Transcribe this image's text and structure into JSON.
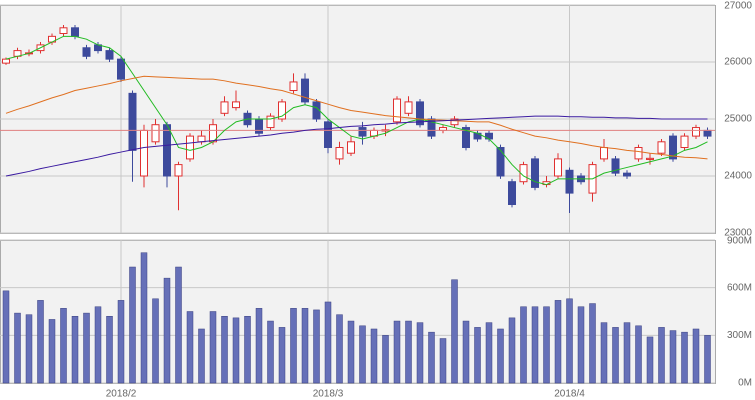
{
  "chart_data": [
    {
      "type": "candlestick",
      "categories": [
        null,
        null,
        null,
        null,
        null,
        null,
        null,
        null,
        null,
        null,
        "2018/2",
        null,
        null,
        null,
        null,
        null,
        null,
        null,
        null,
        null,
        null,
        null,
        null,
        null,
        null,
        null,
        null,
        null,
        "2018/3",
        null,
        null,
        null,
        null,
        null,
        null,
        null,
        null,
        null,
        null,
        null,
        null,
        null,
        null,
        null,
        null,
        null,
        null,
        null,
        null,
        "2018/4",
        null,
        null,
        null,
        null,
        null,
        null,
        null,
        null,
        null,
        null,
        null,
        null
      ],
      "open": [
        25980,
        26100,
        26150,
        26200,
        26350,
        26500,
        26600,
        26250,
        26300,
        26200,
        26050,
        25450,
        24000,
        24600,
        24900,
        24000,
        24300,
        24600,
        24600,
        25100,
        25200,
        25100,
        25000,
        24850,
        25000,
        25500,
        25700,
        25300,
        24950,
        24300,
        24400,
        24850,
        24700,
        24790,
        24950,
        25100,
        25300,
        25000,
        24800,
        24900,
        24850,
        24750,
        24750,
        24500,
        23900,
        23900,
        24300,
        23850,
        24000,
        24100,
        24000,
        23700,
        24300,
        24300,
        24050,
        24300,
        24290,
        24400,
        24700,
        24500,
        24700,
        24800
      ],
      "high": [
        26080,
        26250,
        26220,
        26350,
        26500,
        26650,
        26650,
        26300,
        26350,
        26250,
        26100,
        25500,
        24900,
        25000,
        24950,
        24250,
        24750,
        24800,
        25000,
        25400,
        25500,
        25150,
        25050,
        25100,
        25350,
        25800,
        25800,
        25350,
        25000,
        24600,
        24700,
        24950,
        24850,
        24900,
        25400,
        25400,
        25350,
        25050,
        24900,
        25050,
        24900,
        24800,
        24800,
        24550,
        23950,
        24250,
        24350,
        24000,
        24400,
        24150,
        24050,
        24250,
        24650,
        24350,
        24100,
        24550,
        24400,
        24650,
        24750,
        24750,
        24900,
        24850
      ],
      "low": [
        25950,
        26050,
        26100,
        26150,
        26300,
        26450,
        26400,
        26050,
        26150,
        26000,
        25650,
        23900,
        23800,
        24550,
        23800,
        23400,
        24250,
        24550,
        24550,
        25050,
        25150,
        24850,
        24700,
        24800,
        24950,
        25450,
        25250,
        24950,
        24400,
        24200,
        24350,
        24550,
        24650,
        24700,
        24900,
        25050,
        24850,
        24650,
        24750,
        24850,
        24450,
        24600,
        24600,
        23950,
        23450,
        23850,
        23750,
        23800,
        23950,
        23350,
        23850,
        23550,
        24250,
        24000,
        23950,
        24250,
        24200,
        24350,
        24250,
        24450,
        24650,
        24650
      ],
      "close": [
        26050,
        26200,
        26160,
        26300,
        26450,
        26600,
        26450,
        26100,
        26200,
        26050,
        25700,
        24450,
        24800,
        24900,
        24000,
        24200,
        24700,
        24700,
        24900,
        25300,
        25300,
        24900,
        24750,
        25050,
        25300,
        25650,
        25300,
        25000,
        24500,
        24500,
        24600,
        24700,
        24800,
        24810,
        25350,
        25300,
        24900,
        24700,
        24850,
        25000,
        24500,
        24650,
        24650,
        24000,
        23500,
        24200,
        23800,
        23900,
        24300,
        23700,
        23900,
        24200,
        24500,
        24050,
        24000,
        24500,
        24310,
        24600,
        24300,
        24700,
        24850,
        24700
      ],
      "up_color": "#e03030",
      "down_color": "#3d4a9c",
      "series": [
        {
          "color": "#22bb22",
          "values": [
            26050,
            26100,
            26150,
            26250,
            26350,
            26450,
            26450,
            26400,
            26300,
            26250,
            26100,
            25800,
            25500,
            25200,
            24900,
            24500,
            24450,
            24500,
            24600,
            24800,
            24950,
            25000,
            25000,
            25000,
            25050,
            25200,
            25250,
            25200,
            25000,
            24850,
            24700,
            24650,
            24700,
            24750,
            24850,
            24950,
            25000,
            24950,
            24900,
            24850,
            24800,
            24750,
            24650,
            24450,
            24200,
            24000,
            23900,
            23850,
            23950,
            23950,
            23950,
            23950,
            24050,
            24100,
            24150,
            24200,
            24250,
            24300,
            24350,
            24450,
            24500,
            24600
          ]
        },
        {
          "color": "#e07020",
          "values": [
            25100,
            25170,
            25230,
            25300,
            25370,
            25430,
            25500,
            25540,
            25580,
            25620,
            25670,
            25710,
            25750,
            25740,
            25730,
            25720,
            25710,
            25700,
            25700,
            25670,
            25630,
            25600,
            25570,
            25530,
            25500,
            25440,
            25380,
            25320,
            25260,
            25200,
            25150,
            25120,
            25090,
            25060,
            25040,
            25020,
            25000,
            24990,
            24980,
            24970,
            24960,
            24950,
            24950,
            24890,
            24820,
            24760,
            24700,
            24670,
            24630,
            24600,
            24570,
            24530,
            24500,
            24480,
            24450,
            24430,
            24400,
            24380,
            24350,
            24330,
            24320,
            24300
          ]
        },
        {
          "color": "#3a1aa0",
          "values": [
            24000,
            24040,
            24080,
            24130,
            24170,
            24210,
            24250,
            24290,
            24330,
            24380,
            24420,
            24460,
            24500,
            24520,
            24540,
            24560,
            24580,
            24600,
            24620,
            24640,
            24660,
            24680,
            24700,
            24720,
            24750,
            24770,
            24800,
            24820,
            24830,
            24850,
            24870,
            24880,
            24900,
            24910,
            24930,
            24940,
            24950,
            24960,
            24970,
            24980,
            24990,
            25000,
            25010,
            25020,
            25030,
            25040,
            25050,
            25050,
            25050,
            25040,
            25040,
            25030,
            25030,
            25020,
            25020,
            25010,
            25010,
            25000,
            25000,
            25000,
            25000,
            25000
          ]
        }
      ],
      "hline": 24800,
      "hline_color": "#e08080",
      "ylim": [
        23000,
        27000
      ],
      "yticks": [
        23000,
        24000,
        25000,
        26000,
        27000
      ],
      "grid": true
    },
    {
      "type": "bar",
      "categories": [
        null,
        null,
        null,
        null,
        null,
        null,
        null,
        null,
        null,
        null,
        "2018/2",
        null,
        null,
        null,
        null,
        null,
        null,
        null,
        null,
        null,
        null,
        null,
        null,
        null,
        null,
        null,
        null,
        null,
        "2018/3",
        null,
        null,
        null,
        null,
        null,
        null,
        null,
        null,
        null,
        null,
        null,
        null,
        null,
        null,
        null,
        null,
        null,
        null,
        null,
        null,
        "2018/4",
        null,
        null,
        null,
        null,
        null,
        null,
        null,
        null,
        null,
        null,
        null,
        null
      ],
      "values": [
        580,
        440,
        430,
        520,
        400,
        470,
        420,
        440,
        480,
        420,
        520,
        730,
        820,
        530,
        660,
        730,
        450,
        340,
        450,
        420,
        410,
        420,
        470,
        390,
        350,
        470,
        470,
        460,
        510,
        430,
        390,
        360,
        340,
        300,
        390,
        390,
        380,
        320,
        280,
        650,
        390,
        350,
        380,
        340,
        410,
        480,
        480,
        480,
        520,
        530,
        480,
        500,
        380,
        350,
        380,
        360,
        290,
        350,
        330,
        320,
        340,
        300
      ],
      "color": "#6670b8",
      "ylim": [
        0,
        900
      ],
      "yticks": [
        {
          "value": 0,
          "label": "0M"
        },
        {
          "value": 300,
          "label": "300M"
        },
        {
          "value": 600,
          "label": "600M"
        },
        {
          "value": 900,
          "label": "900M"
        }
      ],
      "grid": true
    }
  ]
}
